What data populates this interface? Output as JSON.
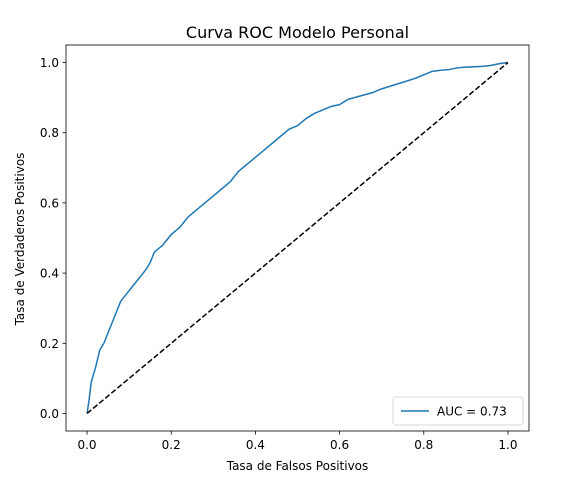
{
  "chart_data": {
    "type": "line",
    "title": "Curva ROC Modelo Personal",
    "xlabel": "Tasa de Falsos Positivos",
    "ylabel": "Tasa de Verdaderos Positivos",
    "xlim": [
      -0.05,
      1.05
    ],
    "ylim": [
      -0.05,
      1.05
    ],
    "xticks": [
      0.0,
      0.2,
      0.4,
      0.6,
      0.8,
      1.0
    ],
    "yticks": [
      0.0,
      0.2,
      0.4,
      0.6,
      0.8,
      1.0
    ],
    "xtick_labels": [
      "0.0",
      "0.2",
      "0.4",
      "0.6",
      "0.8",
      "1.0"
    ],
    "ytick_labels": [
      "0.0",
      "0.2",
      "0.4",
      "0.6",
      "0.8",
      "1.0"
    ],
    "grid": false,
    "legend_position": "lower-right",
    "series": [
      {
        "name": "AUC = 0.73",
        "color": "#1f77b4",
        "style": "solid",
        "x": [
          0.0,
          0.005,
          0.01,
          0.015,
          0.02,
          0.03,
          0.04,
          0.05,
          0.06,
          0.07,
          0.08,
          0.1,
          0.12,
          0.14,
          0.15,
          0.16,
          0.18,
          0.2,
          0.22,
          0.24,
          0.26,
          0.28,
          0.3,
          0.32,
          0.34,
          0.36,
          0.38,
          0.4,
          0.42,
          0.44,
          0.46,
          0.48,
          0.5,
          0.52,
          0.54,
          0.56,
          0.58,
          0.6,
          0.62,
          0.65,
          0.68,
          0.7,
          0.74,
          0.78,
          0.8,
          0.82,
          0.84,
          0.86,
          0.88,
          0.9,
          0.92,
          0.94,
          0.96,
          0.98,
          1.0
        ],
        "y": [
          0.0,
          0.04,
          0.09,
          0.11,
          0.13,
          0.18,
          0.2,
          0.23,
          0.26,
          0.29,
          0.32,
          0.35,
          0.38,
          0.41,
          0.43,
          0.46,
          0.48,
          0.51,
          0.53,
          0.56,
          0.58,
          0.6,
          0.62,
          0.64,
          0.66,
          0.69,
          0.71,
          0.73,
          0.75,
          0.77,
          0.79,
          0.81,
          0.82,
          0.84,
          0.855,
          0.865,
          0.875,
          0.88,
          0.895,
          0.905,
          0.915,
          0.925,
          0.94,
          0.955,
          0.965,
          0.975,
          0.978,
          0.98,
          0.985,
          0.987,
          0.988,
          0.989,
          0.992,
          0.997,
          1.0
        ]
      },
      {
        "name": "",
        "color": "#000000",
        "style": "dashed",
        "x": [
          0.0,
          1.0
        ],
        "y": [
          0.0,
          1.0
        ]
      }
    ],
    "legend_entries": [
      "AUC = 0.73"
    ]
  }
}
